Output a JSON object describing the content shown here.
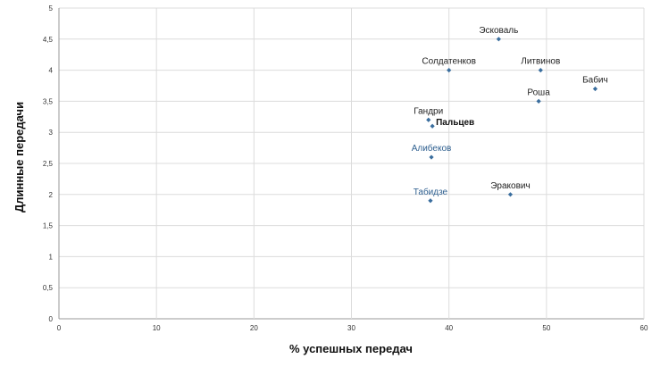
{
  "chart_data": {
    "type": "scatter",
    "title": "",
    "xlabel": "% успешных передач",
    "ylabel": "Длинные передачи",
    "xlim": [
      0,
      60
    ],
    "ylim": [
      0,
      5
    ],
    "x_ticks": [
      "0",
      "10",
      "20",
      "30",
      "40",
      "50",
      "60"
    ],
    "y_ticks": [
      "0",
      "0,5",
      "1",
      "1,5",
      "2",
      "2,5",
      "3",
      "3,5",
      "4",
      "4,5",
      "5"
    ],
    "grid": true,
    "marker_color": "#3a6e9e",
    "points": [
      {
        "name": "Эсковаль",
        "x": 45.1,
        "y": 4.5,
        "label_color": "#222222",
        "emphasis": false
      },
      {
        "name": "Солдатенков",
        "x": 40.0,
        "y": 4.0,
        "label_color": "#222222",
        "emphasis": false
      },
      {
        "name": "Литвинов",
        "x": 49.4,
        "y": 4.0,
        "label_color": "#222222",
        "emphasis": false
      },
      {
        "name": "Бабич",
        "x": 55.0,
        "y": 3.7,
        "label_color": "#222222",
        "emphasis": false
      },
      {
        "name": "Роша",
        "x": 49.2,
        "y": 3.5,
        "label_color": "#222222",
        "emphasis": false
      },
      {
        "name": "Гандри",
        "x": 37.9,
        "y": 3.2,
        "label_color": "#222222",
        "emphasis": false
      },
      {
        "name": "Пальцев",
        "x": 38.3,
        "y": 3.1,
        "label_color": "#111111",
        "emphasis": true
      },
      {
        "name": "Алибеков",
        "x": 38.2,
        "y": 2.6,
        "label_color": "#2e5f8f",
        "emphasis": false
      },
      {
        "name": "Табидзе",
        "x": 38.1,
        "y": 1.9,
        "label_color": "#2e5f8f",
        "emphasis": false
      },
      {
        "name": "Эракович",
        "x": 46.3,
        "y": 2.0,
        "label_color": "#222222",
        "emphasis": false
      }
    ]
  }
}
